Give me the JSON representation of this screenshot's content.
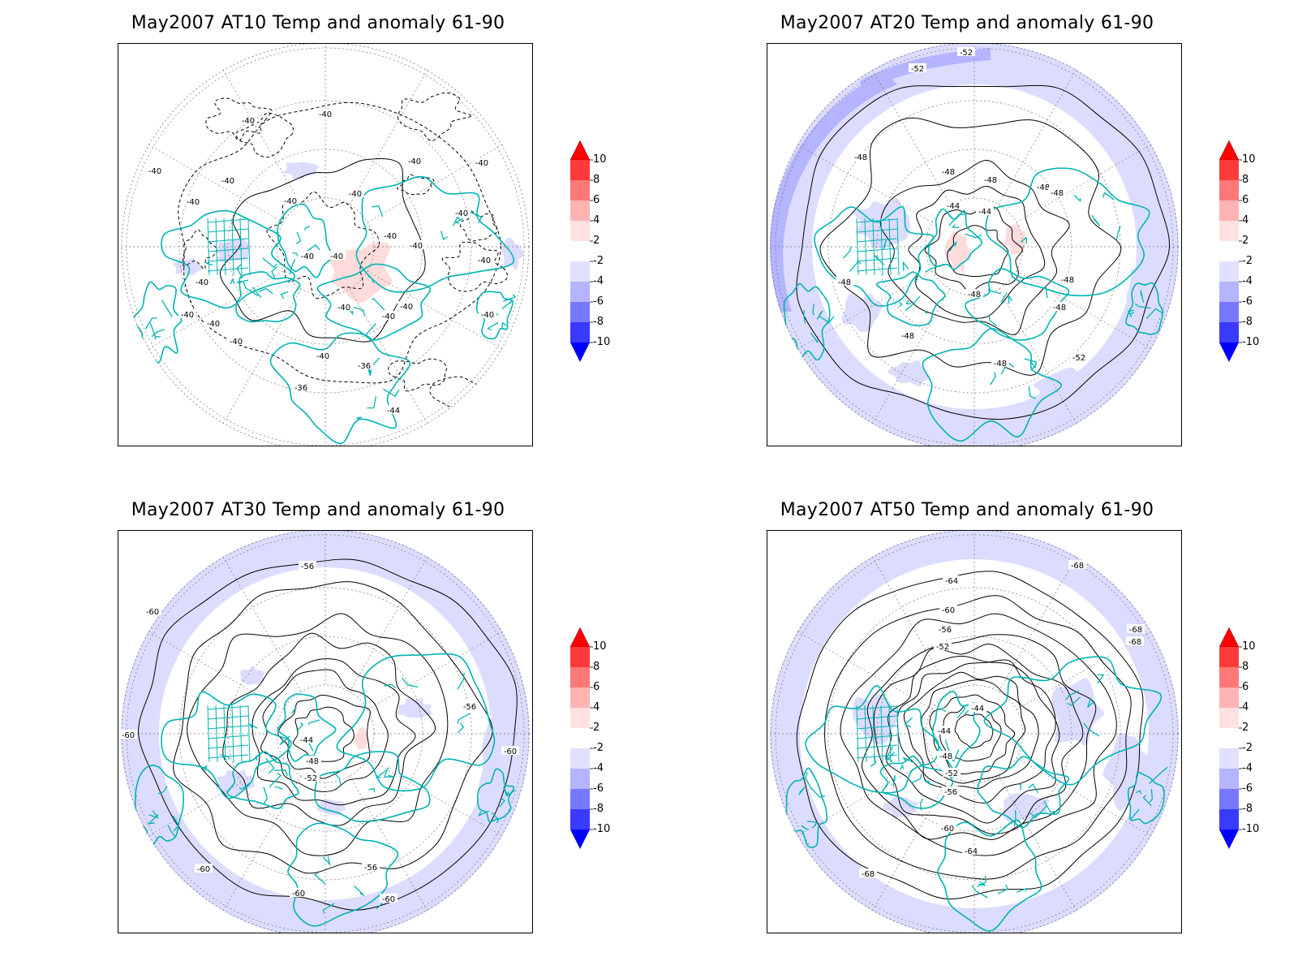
{
  "figure": {
    "panels": [
      {
        "title": "May2007 AT10 Temp and anomaly 61-90",
        "contour_labels": [
          "-40",
          "-40",
          "-40",
          "-40",
          "-40",
          "-40",
          "-40",
          "-40",
          "-40",
          "-40",
          "-40",
          "-40",
          "-40",
          "-40",
          "-40",
          "-40",
          "-40",
          "-40",
          "-40",
          "-40",
          "-40",
          "-40",
          "-36",
          "-36",
          "-44",
          "-40",
          "-40"
        ],
        "warm_anomaly_cells": 1,
        "cool_anomaly_cells": 4
      },
      {
        "title": "May2007 AT20 Temp and anomaly 61-90",
        "contour_labels": [
          "-52",
          "-52",
          "-48",
          "-48",
          "-48",
          "-48",
          "-48",
          "-44",
          "-44",
          "-48",
          "-48",
          "-48",
          "-48",
          "-48",
          "-48",
          "-52"
        ],
        "warm_anomaly_cells": 2,
        "cool_anomaly_cells": 6
      },
      {
        "title": "May2007 AT30 Temp and anomaly 61-90",
        "contour_labels": [
          "-56",
          "-60",
          "-60",
          "-56",
          "-44",
          "-48",
          "-52",
          "-60",
          "-60",
          "-56",
          "-60",
          "-60"
        ],
        "warm_anomaly_cells": 1,
        "cool_anomaly_cells": 8
      },
      {
        "title": "May2007 AT50 Temp and anomaly 61-90",
        "contour_labels": [
          "-68",
          "-64",
          "-60",
          "-56",
          "-52",
          "-68",
          "-68",
          "-44",
          "-44",
          "-48",
          "-52",
          "-56",
          "-60",
          "-64",
          "-68"
        ],
        "warm_anomaly_cells": 0,
        "cool_anomaly_cells": 7
      }
    ],
    "colorbar": {
      "labels": [
        "10",
        "8",
        "6",
        "4",
        "2",
        "-2",
        "-4",
        "-6",
        "-8",
        "-10"
      ],
      "colors": [
        "#ff0000",
        "#ff3a3a",
        "#ff7878",
        "#ffb4b4",
        "#ffe1e1",
        "#ffffff",
        "#e1e1ff",
        "#b4b4ff",
        "#7878ff",
        "#3a3aff",
        "#0000ff"
      ],
      "tip_colors": {
        "top": "#ff0000",
        "bottom": "#0000ff"
      }
    },
    "colors": {
      "coastline": "#00b4b4",
      "contour": "#000000",
      "graticule": "#777777",
      "cool_fill": "#dcdcff",
      "cool_fill_strong": "#b4b4ff",
      "warm_fill": "#ffdcdc"
    }
  }
}
